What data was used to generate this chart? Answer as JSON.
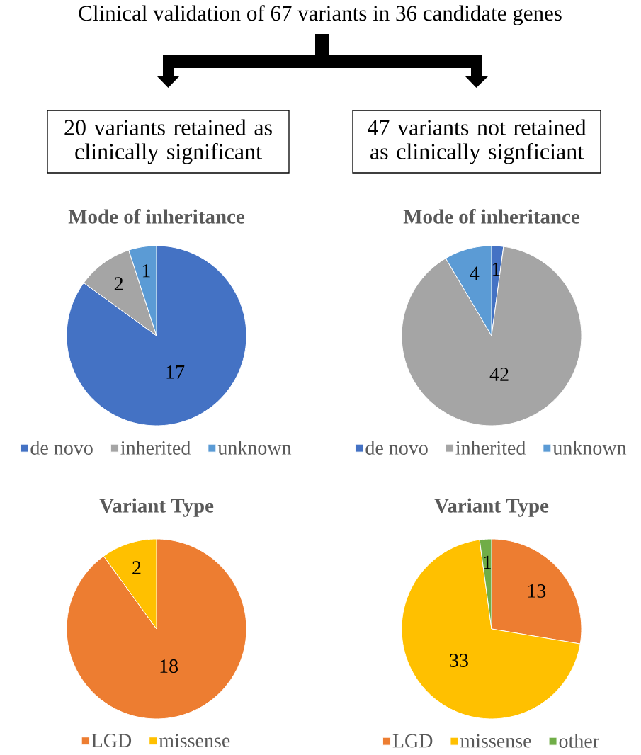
{
  "chart_data": [
    {
      "type": "other",
      "title": "Clinical validation of 67 variants in 36 candidate genes",
      "annotations": [
        "20 variants retained as clinically significant",
        "47 variants not retained as clinically signficiant"
      ]
    },
    {
      "type": "pie",
      "title": "Mode of inheritance",
      "categories": [
        "de novo",
        "inherited",
        "unknown"
      ],
      "values": [
        17,
        2,
        1
      ],
      "colors": [
        "#4472c4",
        "#a5a5a5",
        "#5b9bd5"
      ],
      "data_labels": true,
      "legend": "bottom"
    },
    {
      "type": "pie",
      "title": "Mode of inheritance",
      "categories": [
        "de novo",
        "inherited",
        "unknown"
      ],
      "values": [
        1,
        42,
        4
      ],
      "colors": [
        "#4472c4",
        "#a5a5a5",
        "#5b9bd5"
      ],
      "data_labels": true,
      "legend": "bottom"
    },
    {
      "type": "pie",
      "title": "Variant Type",
      "categories": [
        "LGD",
        "missense"
      ],
      "values": [
        18,
        2
      ],
      "colors": [
        "#ed7d31",
        "#ffc000"
      ],
      "data_labels": true,
      "legend": "bottom"
    },
    {
      "type": "pie",
      "title": "Variant Type",
      "categories": [
        "LGD",
        "missense",
        "other"
      ],
      "values": [
        13,
        33,
        1
      ],
      "colors": [
        "#ed7d31",
        "#ffc000",
        "#70ad47"
      ],
      "data_labels": true,
      "legend": "bottom"
    }
  ]
}
